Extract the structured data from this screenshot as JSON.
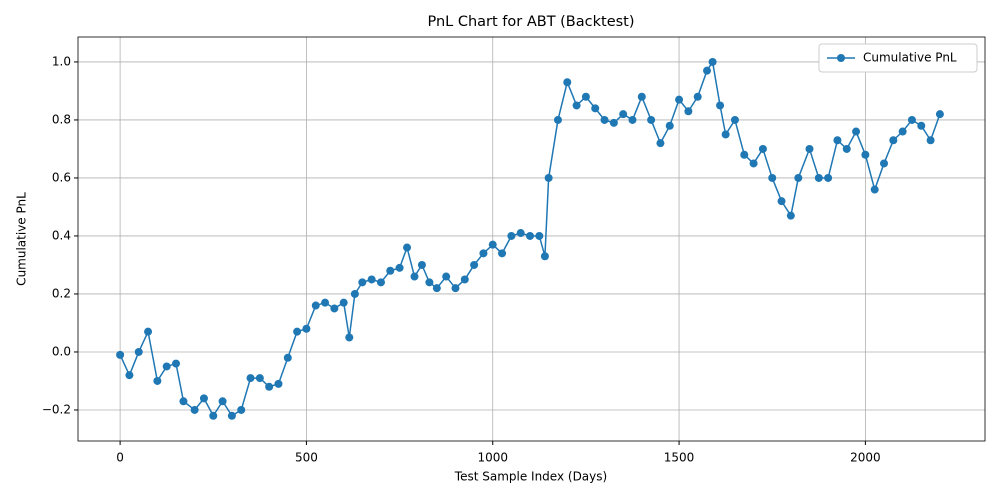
{
  "chart_data": {
    "type": "line",
    "title": "PnL Chart for ABT (Backtest)",
    "x_label": "Test Sample Index (Days)",
    "y_label": "Cumulative PnL",
    "xlim": [
      -113,
      2321
    ],
    "ylim": [
      -0.307,
      1.086
    ],
    "xticks": [
      0,
      500,
      1000,
      1500,
      2000
    ],
    "yticks": [
      {
        "value": -0.2,
        "label": "−0.2"
      },
      {
        "value": 0,
        "label": "0.0"
      },
      {
        "value": 0.2,
        "label": "0.2"
      },
      {
        "value": 0.4,
        "label": "0.4"
      },
      {
        "value": 0.6,
        "label": "0.6"
      },
      {
        "value": 0.8,
        "label": "0.8"
      },
      {
        "value": 1.0,
        "label": "1.0"
      }
    ],
    "grid": true,
    "legend": "upper right",
    "x": [
      0,
      25,
      50,
      75,
      100,
      125,
      150,
      170,
      200,
      225,
      250,
      275,
      300,
      325,
      350,
      375,
      400,
      425,
      450,
      475,
      500,
      525,
      550,
      575,
      600,
      615,
      630,
      650,
      675,
      700,
      725,
      750,
      770,
      790,
      810,
      830,
      850,
      875,
      900,
      925,
      950,
      975,
      1000,
      1025,
      1050,
      1075,
      1100,
      1125,
      1140,
      1150,
      1175,
      1200,
      1225,
      1250,
      1275,
      1300,
      1325,
      1350,
      1375,
      1400,
      1425,
      1450,
      1475,
      1500,
      1525,
      1550,
      1575,
      1590,
      1610,
      1625,
      1650,
      1675,
      1700,
      1725,
      1750,
      1775,
      1800,
      1820,
      1850,
      1875,
      1900,
      1925,
      1950,
      1975,
      2000,
      2025,
      2050,
      2075,
      2100,
      2125,
      2150,
      2175,
      2200
    ],
    "series": [
      {
        "name": "Cumulative PnL",
        "color": "#1f77b4",
        "values": [
          -0.01,
          -0.08,
          0.0,
          0.07,
          -0.1,
          -0.05,
          -0.04,
          -0.17,
          -0.2,
          -0.16,
          -0.22,
          -0.17,
          -0.22,
          -0.2,
          -0.09,
          -0.09,
          -0.12,
          -0.11,
          -0.02,
          0.07,
          0.08,
          0.16,
          0.17,
          0.15,
          0.17,
          0.05,
          0.2,
          0.24,
          0.25,
          0.24,
          0.28,
          0.29,
          0.36,
          0.26,
          0.3,
          0.24,
          0.22,
          0.26,
          0.22,
          0.25,
          0.3,
          0.34,
          0.37,
          0.34,
          0.4,
          0.41,
          0.4,
          0.4,
          0.33,
          0.6,
          0.8,
          0.93,
          0.85,
          0.88,
          0.84,
          0.8,
          0.79,
          0.82,
          0.8,
          0.88,
          0.8,
          0.72,
          0.78,
          0.87,
          0.83,
          0.88,
          0.97,
          1.0,
          0.85,
          0.75,
          0.8,
          0.68,
          0.65,
          0.7,
          0.6,
          0.52,
          0.47,
          0.6,
          0.7,
          0.6,
          0.6,
          0.73,
          0.7,
          0.76,
          0.68,
          0.56,
          0.65,
          0.73,
          0.76,
          0.8,
          0.78,
          0.73,
          0.82
        ]
      }
    ]
  }
}
